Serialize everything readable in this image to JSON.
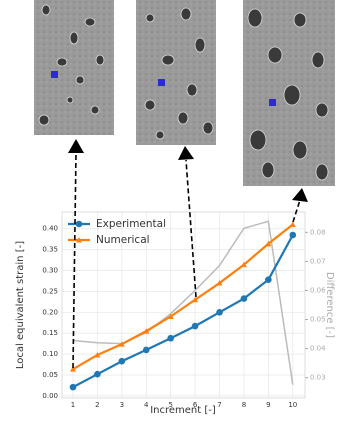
{
  "chart_data": {
    "type": "line",
    "x": [
      1,
      2,
      3,
      4,
      5,
      6,
      7,
      8,
      9,
      10
    ],
    "xlabel": "Increment [-]",
    "ylabel": "Local equivalent strain [-]",
    "y2label": "Difference [-]",
    "xlim": [
      0.55,
      10.5
    ],
    "xticks": [
      1,
      2,
      3,
      4,
      5,
      6,
      7,
      8,
      9,
      10
    ],
    "ylim": [
      -0.005,
      0.44
    ],
    "yticks": [
      {
        "value": 0,
        "label": "0.00"
      },
      0.05,
      {
        "value": 0.1,
        "label": "0.10"
      },
      0.15,
      {
        "value": 0.2,
        "label": "0.20"
      },
      0.25,
      {
        "value": 0.3,
        "label": "0.30"
      },
      0.35,
      {
        "value": 0.4,
        "label": "0.40"
      }
    ],
    "y2lim": [
      0.023,
      0.087
    ],
    "y2ticks": [
      0.03,
      0.04,
      0.05,
      0.06,
      0.07,
      0.08
    ],
    "grid": true,
    "legend": "upper left",
    "series": [
      {
        "name": "Experimental",
        "color": "#1f77b4",
        "marker": "circle",
        "values": [
          0.021,
          0.052,
          0.083,
          0.11,
          0.138,
          0.167,
          0.2,
          0.233,
          0.278,
          0.385
        ]
      },
      {
        "name": "Numerical",
        "color": "#ff7f0e",
        "marker": "triangle",
        "values": [
          0.064,
          0.098,
          0.124,
          0.155,
          0.19,
          0.23,
          0.27,
          0.314,
          0.364,
          0.41
        ]
      },
      {
        "color": "#bbbbbb",
        "axis": "y2",
        "values": [
          0.0428,
          0.042,
          0.0417,
          0.0455,
          0.052,
          0.06,
          0.0686,
          0.0814,
          0.0838,
          0.0276
        ]
      }
    ]
  }
}
